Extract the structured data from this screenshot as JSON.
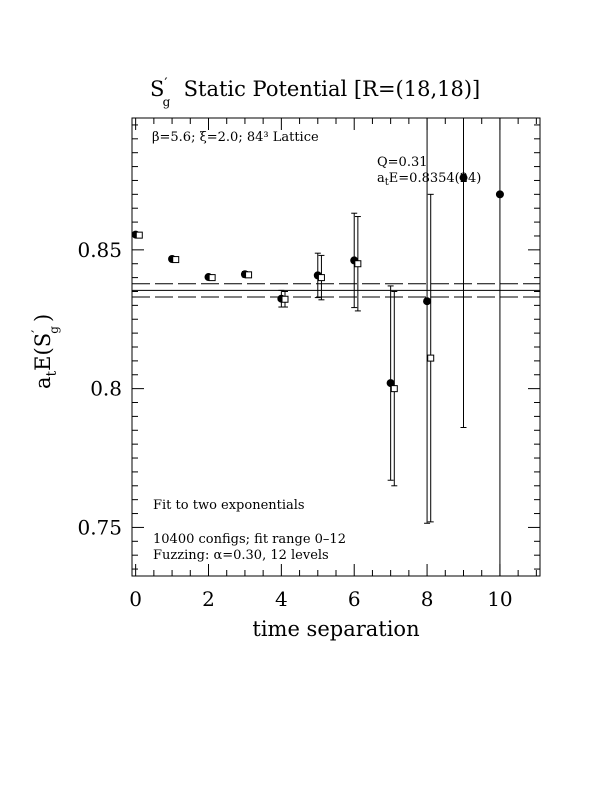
{
  "chart_data": {
    "type": "scatter",
    "title": {
      "prefix": "S",
      "prefix_prime": "′",
      "prefix_sub": "g",
      "rest": "  Static Potential [R=(18,18)]"
    },
    "xlabel": "time separation",
    "ylabel": {
      "a": "a",
      "a_sub": "t",
      "E": "E(S",
      "prime": "′",
      "g_sub": "g",
      "close": ")"
    },
    "xlim": [
      -0.1,
      11.1
    ],
    "ylim": [
      0.7325,
      0.8975
    ],
    "x_ticks": [
      0,
      2,
      4,
      6,
      8,
      10
    ],
    "x_tick_labels": [
      "0",
      "2",
      "4",
      "6",
      "8",
      "10"
    ],
    "y_ticks": [
      0.75,
      0.8,
      0.85
    ],
    "y_tick_labels": [
      "0.75",
      "0.8",
      "0.85"
    ],
    "annotations": {
      "lattice": "β=5.6; ξ=2.0; 84³ Lattice",
      "q": "Q=0.31",
      "fit_value_prefix": "a",
      "fit_value_sub": "t",
      "fit_value_rest": "E=0.8354(24)",
      "fit_type": "Fit to two exponentials",
      "configs": "10400 configs; fit range 0–12",
      "fuzzing": "Fuzzing: α=0.30, 12 levels"
    },
    "fit": {
      "value": 0.8354,
      "error": 0.0024,
      "x_range": [
        -0.1,
        11.1
      ]
    },
    "series": [
      {
        "marker": "filled-circle",
        "color": "#000000",
        "points": [
          {
            "x": 0,
            "y": 0.8555,
            "err": 0.0005
          },
          {
            "x": 1,
            "y": 0.8467,
            "err": 0.0005
          },
          {
            "x": 2,
            "y": 0.8402,
            "err": 0.0006
          },
          {
            "x": 3,
            "y": 0.8412,
            "err": 0.001
          },
          {
            "x": 4,
            "y": 0.8324,
            "err": 0.003
          },
          {
            "x": 5,
            "y": 0.8408,
            "err": 0.008
          },
          {
            "x": 6,
            "y": 0.8462,
            "err": 0.017
          },
          {
            "x": 7,
            "y": 0.802,
            "err": 0.035
          },
          {
            "x": 8,
            "y": 0.8315,
            "err": 0.08
          },
          {
            "x": 9,
            "y": 0.876,
            "err": 0.09
          },
          {
            "x": 10,
            "y": 0.87,
            "err": 0.2
          }
        ]
      },
      {
        "marker": "open-square",
        "color": "#000000",
        "points": [
          {
            "x": 0.1,
            "y": 0.8553,
            "err": 0.0005
          },
          {
            "x": 1.1,
            "y": 0.8465,
            "err": 0.0005
          },
          {
            "x": 2.1,
            "y": 0.84,
            "err": 0.0006
          },
          {
            "x": 3.1,
            "y": 0.841,
            "err": 0.001
          },
          {
            "x": 4.1,
            "y": 0.8322,
            "err": 0.0028
          },
          {
            "x": 5.1,
            "y": 0.84,
            "err": 0.008
          },
          {
            "x": 6.1,
            "y": 0.845,
            "err": 0.017
          },
          {
            "x": 7.1,
            "y": 0.8,
            "err": 0.035
          },
          {
            "x": 8.1,
            "y": 0.811,
            "err": 0.059
          }
        ]
      }
    ]
  }
}
